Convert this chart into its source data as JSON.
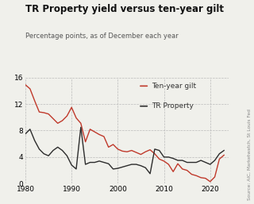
{
  "title": "TR Property yield versus ten-year gilt",
  "subtitle": "Percentage points, as of December each year",
  "source_text": "Source: AIC, Marketwatch, St Louis Fed",
  "legend": {
    "gilt_label": "Ten-year gilt",
    "property_label": "TR Property"
  },
  "gilt_color": "#c0392b",
  "property_color": "#2c2c2c",
  "background_color": "#f0f0eb",
  "grid_color": "#bbbbbb",
  "xlim": [
    1980,
    2024
  ],
  "ylim": [
    0,
    16
  ],
  "yticks": [
    0,
    4,
    8,
    12,
    16
  ],
  "xticks": [
    1980,
    1990,
    2000,
    2010,
    2020
  ],
  "years_gilt": [
    1980,
    1981,
    1982,
    1983,
    1984,
    1985,
    1986,
    1987,
    1988,
    1989,
    1990,
    1991,
    1992,
    1993,
    1994,
    1995,
    1996,
    1997,
    1998,
    1999,
    2000,
    2001,
    2002,
    2003,
    2004,
    2005,
    2006,
    2007,
    2008,
    2009,
    2010,
    2011,
    2012,
    2013,
    2014,
    2015,
    2016,
    2017,
    2018,
    2019,
    2020,
    2021,
    2022,
    2023
  ],
  "gilt_values": [
    14.9,
    14.3,
    12.5,
    10.8,
    10.7,
    10.5,
    9.8,
    9.1,
    9.5,
    10.2,
    11.5,
    9.9,
    9.1,
    6.3,
    8.2,
    7.8,
    7.4,
    7.1,
    5.5,
    5.9,
    5.2,
    4.9,
    4.8,
    5.0,
    4.7,
    4.4,
    4.8,
    5.1,
    4.5,
    3.7,
    3.4,
    2.9,
    1.8,
    3.0,
    2.2,
    2.0,
    1.4,
    1.2,
    0.9,
    0.8,
    0.3,
    1.0,
    3.7,
    4.3
  ],
  "years_property": [
    1980,
    1981,
    1982,
    1983,
    1984,
    1985,
    1986,
    1987,
    1988,
    1989,
    1990,
    1991,
    1992,
    1993,
    1994,
    1995,
    1996,
    1997,
    1998,
    1999,
    2000,
    2001,
    2002,
    2003,
    2004,
    2005,
    2006,
    2007,
    2008,
    2009,
    2010,
    2011,
    2012,
    2013,
    2014,
    2015,
    2016,
    2017,
    2018,
    2019,
    2020,
    2021,
    2022,
    2023
  ],
  "property_values": [
    7.5,
    8.2,
    6.5,
    5.2,
    4.5,
    4.2,
    5.0,
    5.5,
    5.0,
    4.2,
    2.8,
    2.2,
    8.5,
    2.9,
    3.2,
    3.2,
    3.4,
    3.2,
    3.0,
    2.2,
    2.3,
    2.5,
    2.7,
    2.9,
    2.9,
    2.7,
    2.4,
    1.5,
    5.2,
    5.0,
    4.0,
    4.0,
    3.8,
    3.5,
    3.5,
    3.2,
    3.2,
    3.2,
    3.5,
    3.2,
    2.9,
    3.5,
    4.5,
    5.0
  ]
}
